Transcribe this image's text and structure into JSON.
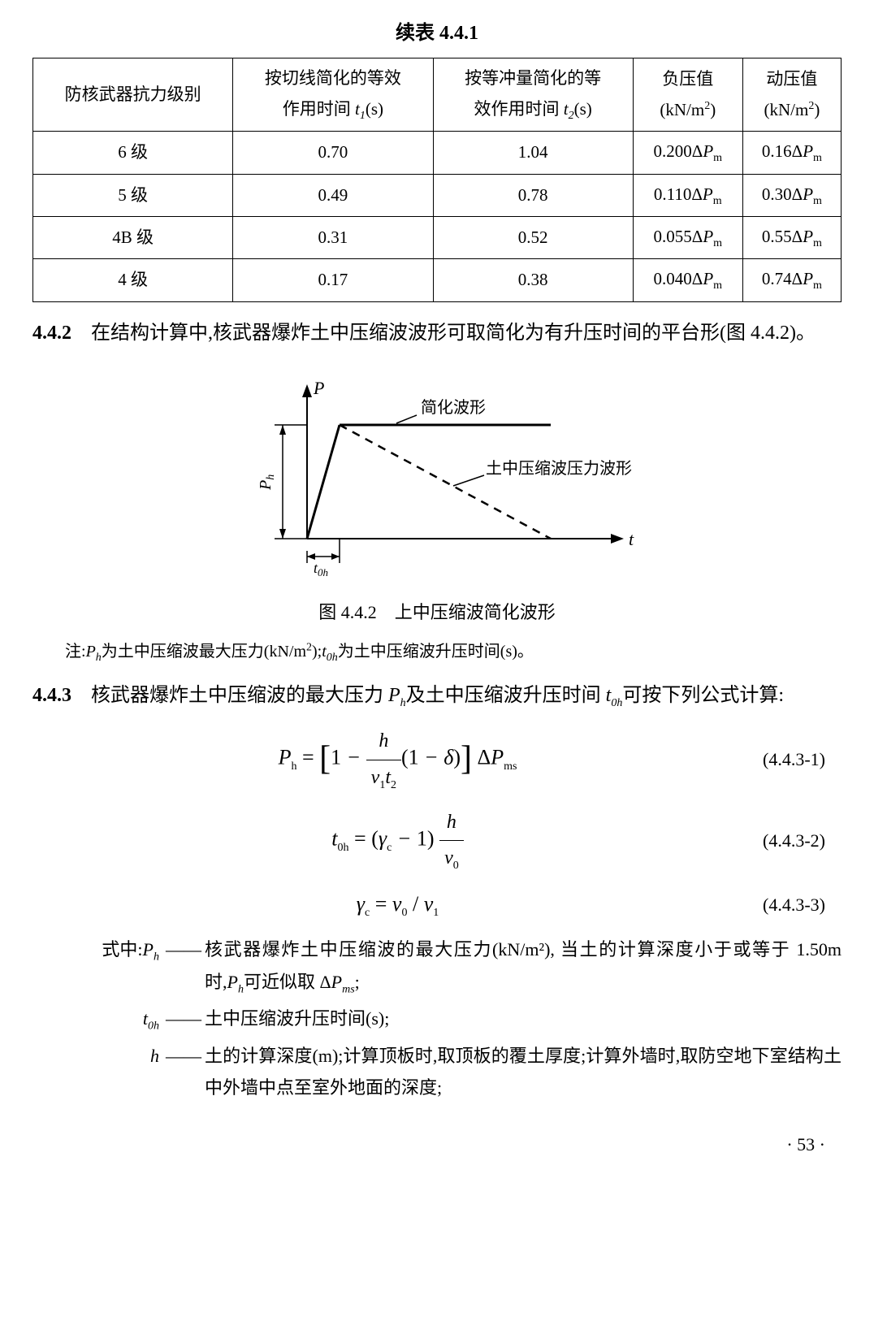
{
  "table": {
    "title": "续表 4.4.1",
    "headers": {
      "col1": "防核武器抗力级别",
      "col2_line1": "按切线简化的等效",
      "col2_line2": "作用时间 ",
      "col2_var": "t",
      "col2_sub": "1",
      "col2_unit": "(s)",
      "col3_line1": "按等冲量简化的等",
      "col3_line2": "效作用时间 ",
      "col3_var": "t",
      "col3_sub": "2",
      "col3_unit": "(s)",
      "col4_line1": "负压值",
      "col4_line2": "(kN/m",
      "col4_sup": "2",
      "col4_close": ")",
      "col5_line1": "动压值",
      "col5_line2": "(kN/m",
      "col5_sup": "2",
      "col5_close": ")"
    },
    "rows": [
      {
        "level": "6 级",
        "t1": "0.70",
        "t2": "1.04",
        "neg_coef": "0.200",
        "dyn_coef": "0.16"
      },
      {
        "level": "5 级",
        "t1": "0.49",
        "t2": "0.78",
        "neg_coef": "0.110",
        "dyn_coef": "0.30"
      },
      {
        "level": "4B 级",
        "t1": "0.31",
        "t2": "0.52",
        "neg_coef": "0.055",
        "dyn_coef": "0.55"
      },
      {
        "level": "4 级",
        "t1": "0.17",
        "t2": "0.38",
        "neg_coef": "0.040",
        "dyn_coef": "0.74"
      }
    ],
    "delta_pm": "ΔP",
    "delta_pm_sub": "m"
  },
  "section_442": {
    "num": "4.4.2",
    "text": "　在结构计算中,核武器爆炸土中压缩波波形可取简化为有升压时间的平台形(图 4.4.2)。"
  },
  "figure": {
    "p_label": "P",
    "t_label": "t",
    "ph_label": "P",
    "ph_sub": "h",
    "t0h_label": "t",
    "t0h_sub": "0h",
    "simplified_label": "简化波形",
    "actual_label": "土中压缩波压力波形",
    "caption": "图 4.4.2　上中压缩波简化波形",
    "note_prefix": "注:",
    "note_p1": "P",
    "note_p1_sub": "h",
    "note_t1": "为土中压缩波最大压力(kN/m",
    "note_sup": "2",
    "note_t2": ");",
    "note_p2": "t",
    "note_p2_sub": "0h",
    "note_t3": "为土中压缩波升压时间(s)。"
  },
  "section_443": {
    "num": "4.4.3",
    "text": "　核武器爆炸土中压缩波的最大压力 ",
    "var1": "P",
    "var1_sub": "h",
    "text2": "及土中压缩波升压时间 ",
    "var2": "t",
    "var2_sub": "0h",
    "text3": "可按下列公式计算:"
  },
  "formulas": {
    "f1_num": "(4.4.3-1)",
    "f2_num": "(4.4.3-2)",
    "f3_num": "(4.4.3-3)"
  },
  "definitions": {
    "prefix": "式中:",
    "d1_sym": "P",
    "d1_sub": "h",
    "d1_text": "核武器爆炸土中压缩波的最大压力(kN/m²), 当土的计算深度小于或等于 1.50m 时,",
    "d1_var": "P",
    "d1_var_sub": "h",
    "d1_text2": "可近似取 Δ",
    "d1_var2": "P",
    "d1_var2_sub": "ms",
    "d1_text3": ";",
    "d2_sym": "t",
    "d2_sub": "0h",
    "d2_text": "土中压缩波升压时间(s);",
    "d3_sym": "h",
    "d3_text": "土的计算深度(m);计算顶板时,取顶板的覆土厚度;计算外墙时,取防空地下室结构土中外墙中点至室外地面的深度;"
  },
  "page_num": "· 53 ·"
}
